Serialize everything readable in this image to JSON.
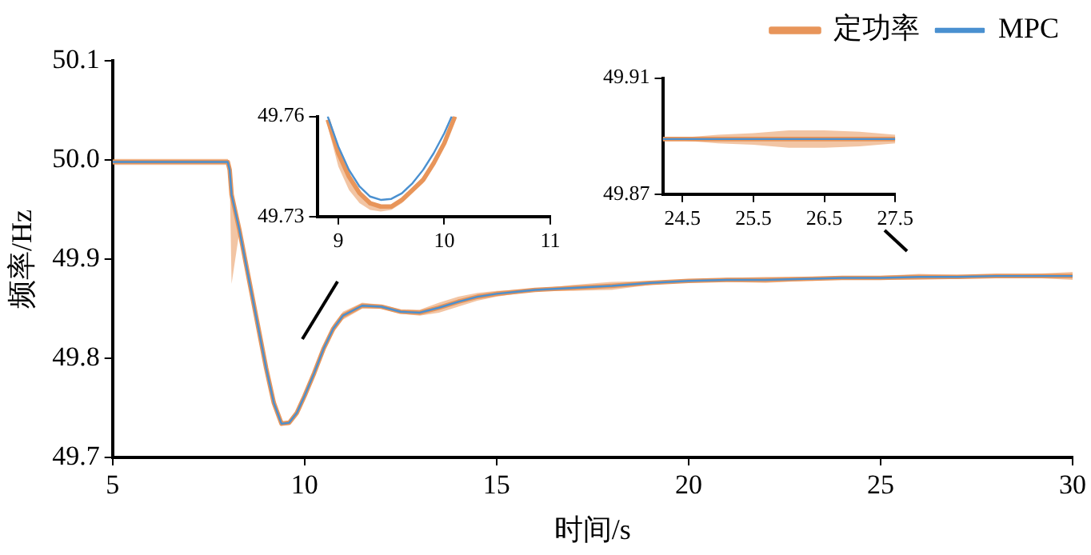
{
  "chart_data": [
    {
      "type": "line",
      "xlabel": "时间/s",
      "ylabel": "频率/Hz",
      "xlim": [
        5,
        30
      ],
      "xticks": [
        5,
        10,
        15,
        20,
        25,
        30
      ],
      "ylim": [
        49.7,
        50.1
      ],
      "yticks": [
        49.7,
        49.8,
        49.9,
        {
          "value": 50,
          "label": "50.0"
        },
        50.1
      ],
      "legend": "top right",
      "marker": "none",
      "series": [
        {
          "name": "定功率",
          "color": "#e8955a",
          "x": [
            5,
            6,
            7,
            8,
            8.05,
            8.1,
            8.3,
            8.5,
            8.75,
            9,
            9.2,
            9.4,
            9.6,
            9.8,
            10,
            10.25,
            10.5,
            10.75,
            11,
            11.5,
            12,
            12.5,
            13,
            13.5,
            14,
            14.5,
            15,
            16,
            17,
            18,
            19,
            20,
            21,
            22,
            23,
            24,
            25,
            26,
            27,
            28,
            29,
            30
          ],
          "values": [
            49.998,
            49.998,
            49.998,
            49.998,
            49.99,
            49.965,
            49.93,
            49.89,
            49.84,
            49.79,
            49.755,
            49.734,
            49.735,
            49.745,
            49.762,
            49.785,
            49.81,
            49.83,
            49.843,
            49.853,
            49.852,
            49.847,
            49.846,
            49.851,
            49.857,
            49.862,
            49.865,
            49.869,
            49.871,
            49.873,
            49.876,
            49.878,
            49.879,
            49.879,
            49.88,
            49.881,
            49.881,
            49.882,
            49.882,
            49.883,
            49.883,
            49.883
          ],
          "lower": [
            49.995,
            49.995,
            49.995,
            49.995,
            49.986,
            49.875,
            49.927,
            49.888,
            49.838,
            49.788,
            49.753,
            49.732,
            49.733,
            49.743,
            49.759,
            49.782,
            49.806,
            49.826,
            49.839,
            49.85,
            49.85,
            49.845,
            49.843,
            49.846,
            49.852,
            49.858,
            49.862,
            49.868,
            49.868,
            49.869,
            49.874,
            49.8775,
            49.877,
            49.876,
            49.878,
            49.88,
            49.879,
            49.879,
            49.88,
            49.8825,
            49.881,
            49.879
          ],
          "upper": [
            50.001,
            50.001,
            50.001,
            50.001,
            49.994,
            49.975,
            49.933,
            49.892,
            49.842,
            49.792,
            49.757,
            49.736,
            49.737,
            49.747,
            49.765,
            49.788,
            49.814,
            49.834,
            49.847,
            49.856,
            49.854,
            49.849,
            49.849,
            49.856,
            49.862,
            49.866,
            49.868,
            49.87,
            49.874,
            49.877,
            49.878,
            49.8785,
            49.881,
            49.882,
            49.882,
            49.882,
            49.883,
            49.885,
            49.884,
            49.8835,
            49.885,
            49.887
          ]
        },
        {
          "name": "MPC",
          "color": "#4a90d0",
          "x": [
            5,
            6,
            7,
            8,
            8.05,
            8.1,
            8.3,
            8.5,
            8.75,
            9,
            9.2,
            9.4,
            9.6,
            9.8,
            10,
            10.25,
            10.5,
            10.75,
            11,
            11.5,
            12,
            12.5,
            13,
            13.5,
            14,
            14.5,
            15,
            16,
            17,
            18,
            19,
            20,
            21,
            22,
            23,
            24,
            25,
            26,
            27,
            28,
            29,
            30
          ],
          "values": [
            49.998,
            49.998,
            49.998,
            49.998,
            49.99,
            49.965,
            49.93,
            49.89,
            49.84,
            49.79,
            49.755,
            49.734,
            49.735,
            49.745,
            49.762,
            49.785,
            49.81,
            49.83,
            49.843,
            49.853,
            49.852,
            49.847,
            49.846,
            49.851,
            49.857,
            49.862,
            49.865,
            49.869,
            49.871,
            49.873,
            49.876,
            49.878,
            49.879,
            49.879,
            49.88,
            49.881,
            49.881,
            49.882,
            49.882,
            49.883,
            49.883,
            49.883
          ]
        }
      ]
    },
    {
      "type": "line",
      "xlim": [
        8.8,
        11
      ],
      "xticks": [
        9,
        10,
        11
      ],
      "ylim": [
        49.73,
        49.76
      ],
      "yticks": [
        49.73,
        49.76
      ],
      "marker": "none",
      "series": [
        {
          "color": "#e8955a",
          "x": [
            8.9,
            9.0,
            9.1,
            9.2,
            9.3,
            9.4,
            9.5,
            9.6,
            9.7,
            9.8,
            9.9,
            10.0,
            10.1
          ],
          "values": [
            49.759,
            49.749,
            49.742,
            49.737,
            49.734,
            49.733,
            49.733,
            49.735,
            49.738,
            49.741,
            49.746,
            49.752,
            49.76
          ],
          "lower": [
            49.757,
            49.745,
            49.738,
            49.734,
            49.732,
            49.7315,
            49.732,
            49.734,
            49.737,
            49.74,
            49.745,
            49.751,
            49.759
          ],
          "upper": [
            49.759,
            49.749,
            49.742,
            49.737,
            49.734,
            49.733,
            49.733,
            49.735,
            49.738,
            49.741,
            49.746,
            49.752,
            49.76
          ]
        },
        {
          "color": "#4a90d0",
          "x": [
            8.9,
            9.0,
            9.1,
            9.2,
            9.3,
            9.4,
            9.5,
            9.6,
            9.7,
            9.8,
            9.9,
            10.0,
            10.07
          ],
          "values": [
            49.76,
            49.751,
            49.744,
            49.739,
            49.736,
            49.735,
            49.7353,
            49.737,
            49.74,
            49.744,
            49.749,
            49.755,
            49.76
          ]
        }
      ]
    },
    {
      "type": "line",
      "xlim": [
        24.22,
        27.5
      ],
      "xticks": [
        24.5,
        25.5,
        26.5,
        27.5
      ],
      "ylim": [
        49.87,
        49.91
      ],
      "yticks": [
        49.87,
        49.91
      ],
      "marker": "none",
      "series": [
        {
          "color": "#e8955a",
          "x": [
            24.22,
            24.5,
            25,
            25.5,
            26,
            26.5,
            27,
            27.5
          ],
          "values": [
            49.889,
            49.889,
            49.889,
            49.889,
            49.889,
            49.889,
            49.889,
            49.889
          ],
          "lower": [
            49.889,
            49.8885,
            49.8875,
            49.887,
            49.886,
            49.886,
            49.8865,
            49.8875
          ],
          "upper": [
            49.889,
            49.8895,
            49.8905,
            49.891,
            49.892,
            49.892,
            49.8915,
            49.8905
          ]
        },
        {
          "color": "#4a90d0",
          "x": [
            24.22,
            24.5,
            25,
            25.5,
            26,
            26.5,
            27,
            27.5
          ],
          "values": [
            49.889,
            49.889,
            49.889,
            49.889,
            49.889,
            49.889,
            49.889,
            49.889
          ]
        }
      ]
    }
  ]
}
